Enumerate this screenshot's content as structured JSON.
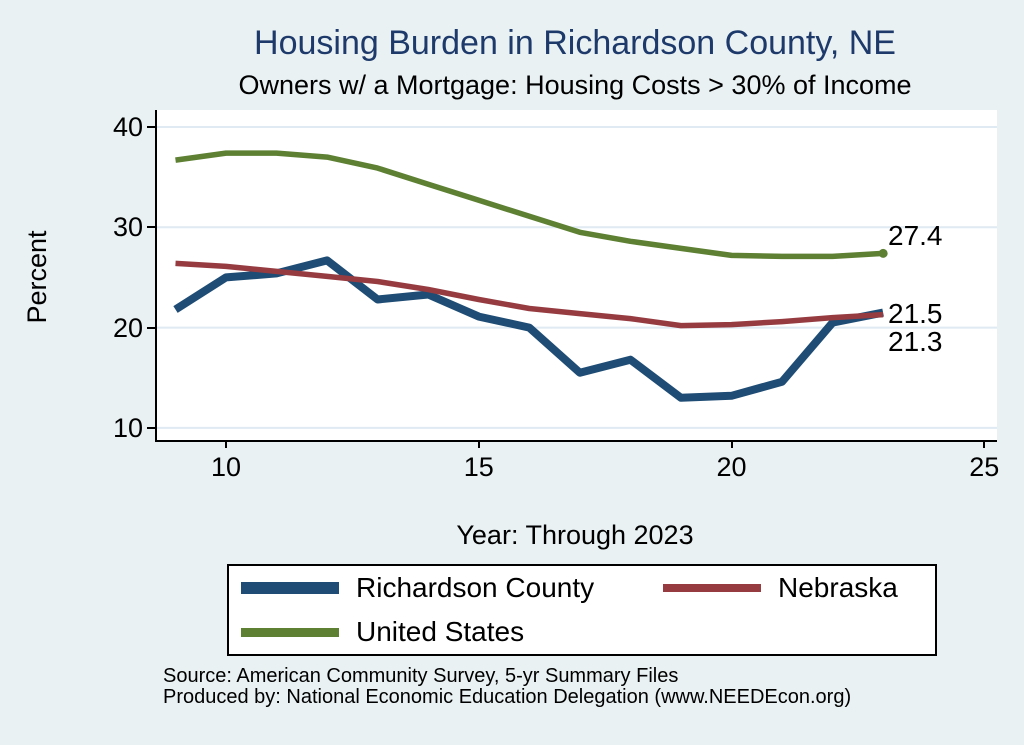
{
  "title": "Housing Burden in Richardson County, NE",
  "subtitle": "Owners w/ a Mortgage: Housing Costs > 30% of Income",
  "chart_data": {
    "type": "line",
    "x": [
      9,
      10,
      11,
      12,
      13,
      14,
      15,
      16,
      17,
      18,
      19,
      20,
      21,
      22,
      23
    ],
    "series": [
      {
        "name": "Richardson County",
        "color": "#1e4c74",
        "linewidth": 8,
        "end_label": "21.5",
        "end_marker": false,
        "values": [
          21.8,
          25.0,
          25.4,
          26.7,
          22.8,
          23.3,
          21.1,
          20.0,
          15.5,
          16.8,
          13.0,
          13.2,
          14.6,
          20.5,
          21.5
        ]
      },
      {
        "name": "Nebraska",
        "color": "#963c41",
        "linewidth": 5.5,
        "end_label": "21.3",
        "end_marker": false,
        "values": [
          26.4,
          26.1,
          25.6,
          25.1,
          24.6,
          23.8,
          22.8,
          21.9,
          21.4,
          20.9,
          20.2,
          20.3,
          20.6,
          21.0,
          21.3
        ]
      },
      {
        "name": "United States",
        "color": "#5d8033",
        "linewidth": 5.5,
        "end_label": "27.4",
        "end_marker": true,
        "values": [
          36.7,
          37.4,
          37.4,
          37.0,
          35.9,
          34.3,
          32.7,
          31.1,
          29.5,
          28.6,
          27.9,
          27.2,
          27.1,
          27.1,
          27.4
        ]
      }
    ],
    "title": "Housing Burden in Richardson County, NE",
    "subtitle": "Owners w/ a Mortgage: Housing Costs > 30% of Income",
    "xlabel": "Year: Through 2023",
    "ylabel": "Percent",
    "xticks": [
      10,
      15,
      20,
      25
    ],
    "yticks": [
      10,
      20,
      30,
      40
    ],
    "xlim": [
      8.6,
      25.3
    ],
    "ylim": [
      8.7,
      41.7
    ],
    "grid": "horizontal",
    "legend_position": "bottom"
  },
  "legend": {
    "items": [
      {
        "label": "Richardson County",
        "color": "#1e4c74",
        "thickness": 12
      },
      {
        "label": "Nebraska",
        "color": "#963c41",
        "thickness": 8
      },
      {
        "label": "United States",
        "color": "#5d8033",
        "thickness": 9
      }
    ]
  },
  "notes": {
    "source": "Source: American Community Survey, 5-yr Summary Files",
    "produced_by": "Produced by: National Economic Education Delegation (www.NEEDEcon.org)"
  },
  "colors": {
    "background": "#e9f1f3",
    "plot_background": "#ffffff",
    "gridline": "#dfeaf2",
    "axis": "#000000",
    "title": "#1e3a6b"
  }
}
